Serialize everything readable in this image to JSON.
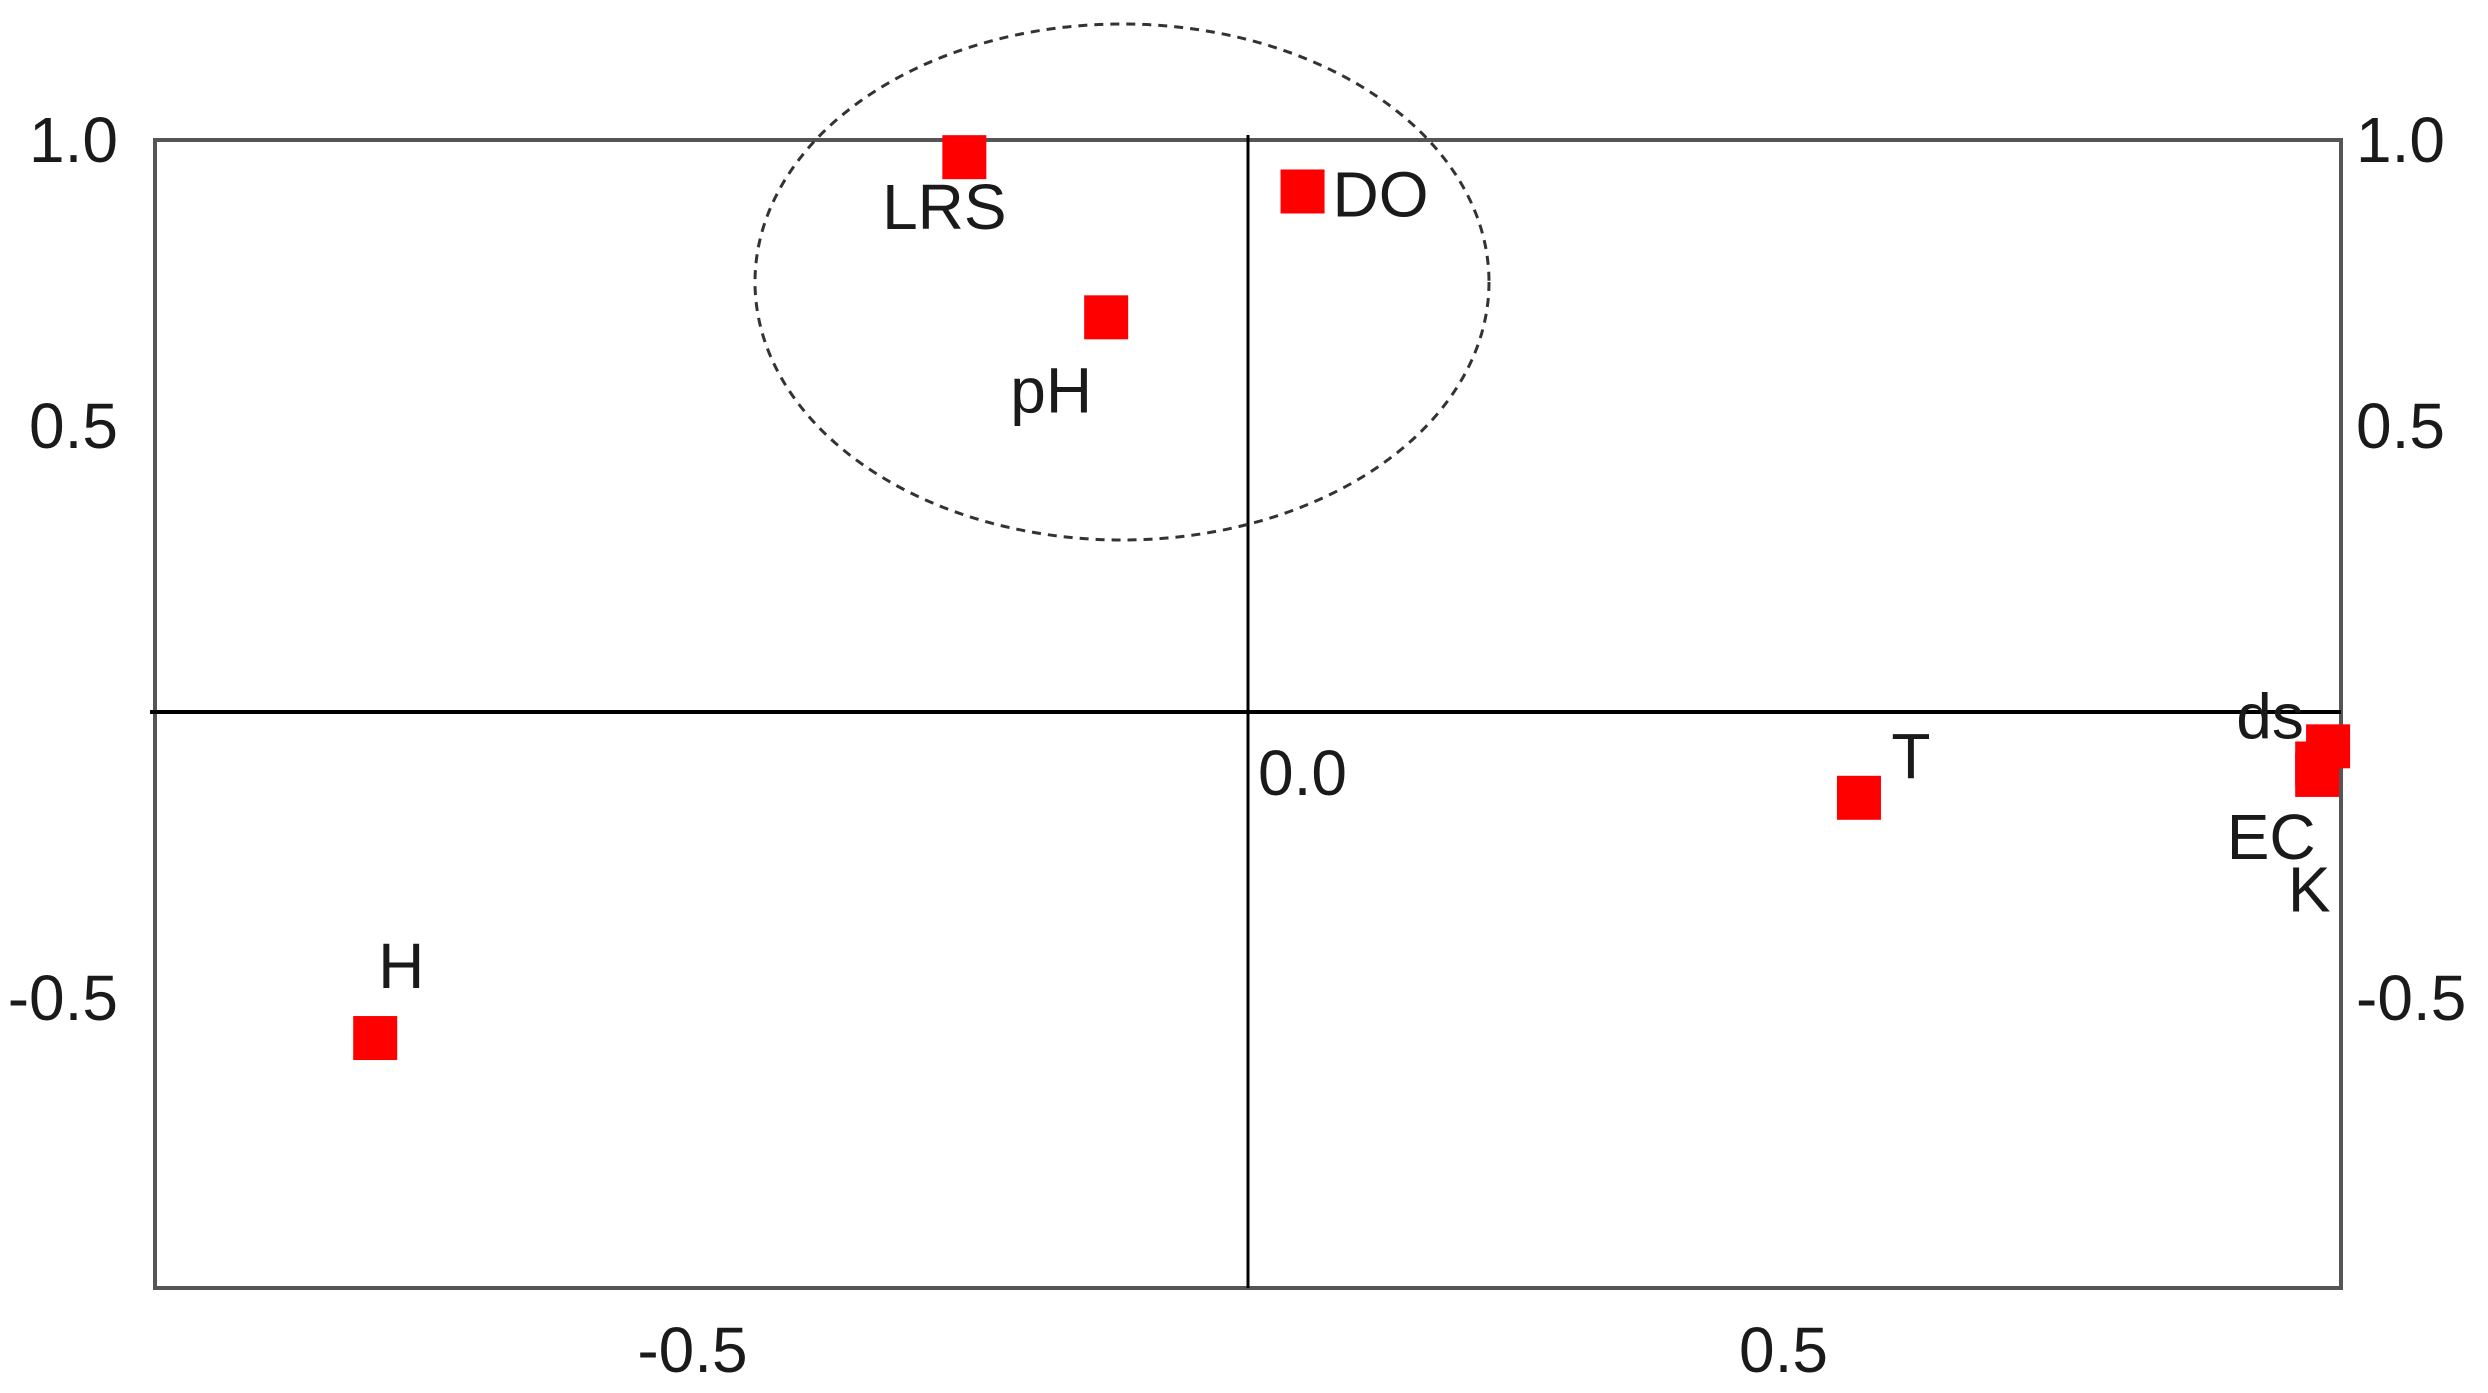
{
  "chart_data": {
    "type": "scatter",
    "title": "",
    "xlabel": "",
    "ylabel": "",
    "xlim": [
      -1.0,
      1.0
    ],
    "ylim": [
      -1.0,
      1.0
    ],
    "grid": false,
    "x_ticks": [
      {
        "value": -0.5,
        "label": "-0.5"
      },
      {
        "value": 0.5,
        "label": "0.5"
      }
    ],
    "y_ticks_left": [
      {
        "value": 1.0,
        "label": "1.0"
      },
      {
        "value": 0.5,
        "label": "0.5"
      },
      {
        "value": -0.5,
        "label": "-0.5"
      }
    ],
    "y_ticks_right": [
      {
        "value": 1.0,
        "label": "1.0"
      },
      {
        "value": 0.5,
        "label": "0.5"
      },
      {
        "value": -0.5,
        "label": "-0.5"
      }
    ],
    "origin_label": "0.0",
    "marker_color": "#ff0000",
    "points": [
      {
        "label": "LRS",
        "x": -0.26,
        "y": 0.97
      },
      {
        "label": "DO",
        "x": 0.05,
        "y": 0.91
      },
      {
        "label": "pH",
        "x": -0.13,
        "y": 0.69
      },
      {
        "label": "T",
        "x": 0.56,
        "y": -0.15
      },
      {
        "label": "H",
        "x": -0.8,
        "y": -0.57
      },
      {
        "label": "ds",
        "x": 0.99,
        "y": -0.06
      },
      {
        "label": "EC",
        "x": 0.98,
        "y": -0.11
      },
      {
        "label": "K",
        "x": 0.98,
        "y": -0.09
      }
    ],
    "annotations": [
      {
        "type": "dashed-ellipse",
        "encloses": [
          "LRS",
          "DO",
          "pH"
        ]
      }
    ]
  }
}
